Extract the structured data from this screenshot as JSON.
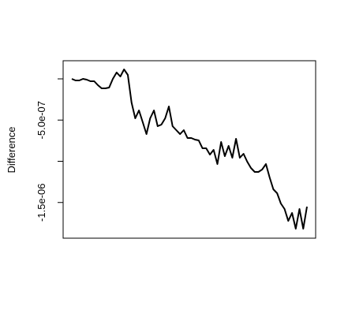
{
  "chart_data": {
    "type": "line",
    "y_label": "Difference",
    "series": [
      {
        "color": "#000000",
        "values": [
          0,
          -1.9e-08,
          -1.9e-08,
          0,
          -1e-08,
          -2.9e-08,
          -2.9e-08,
          -7.7e-08,
          -1.15e-07,
          -1.15e-07,
          -1.05e-07,
          0,
          7.7e-08,
          2.9e-08,
          1.15e-07,
          4.8e-08,
          -2.87e-07,
          -4.79e-07,
          -3.83e-07,
          -5.26e-07,
          -6.7e-07,
          -4.79e-07,
          -3.83e-07,
          -5.74e-07,
          -5.55e-07,
          -4.79e-07,
          -3.35e-07,
          -5.74e-07,
          -6.22e-07,
          -6.7e-07,
          -6.22e-07,
          -7.18e-07,
          -7.18e-07,
          -7.37e-07,
          -7.46e-07,
          -8.42e-07,
          -8.42e-07,
          -9.19e-07,
          -8.61e-07,
          -1.034e-06,
          -7.66e-07,
          -9.38e-07,
          -8.13e-07,
          -9.57e-07,
          -7.27e-07,
          -9.57e-07,
          -9.09e-07,
          -1.005e-06,
          -1.081e-06,
          -1.129e-06,
          -1.129e-06,
          -1.1e-06,
          -1.034e-06,
          -1.196e-06,
          -1.34e-06,
          -1.388e-06,
          -1.512e-06,
          -1.579e-06,
          -1.723e-06,
          -1.627e-06,
          -1.818e-06,
          -1.579e-06,
          -1.818e-06,
          -1.55e-06
        ]
      }
    ],
    "ylim": [
      -1.933e-06,
      2.2e-07
    ],
    "yticks": [
      {
        "value": 0,
        "label": null
      },
      {
        "value": -5e-07,
        "label": "-5.0e-07"
      },
      {
        "value": -1e-06,
        "label": null
      },
      {
        "value": -1.5e-06,
        "label": "-1.5e-06"
      }
    ]
  }
}
